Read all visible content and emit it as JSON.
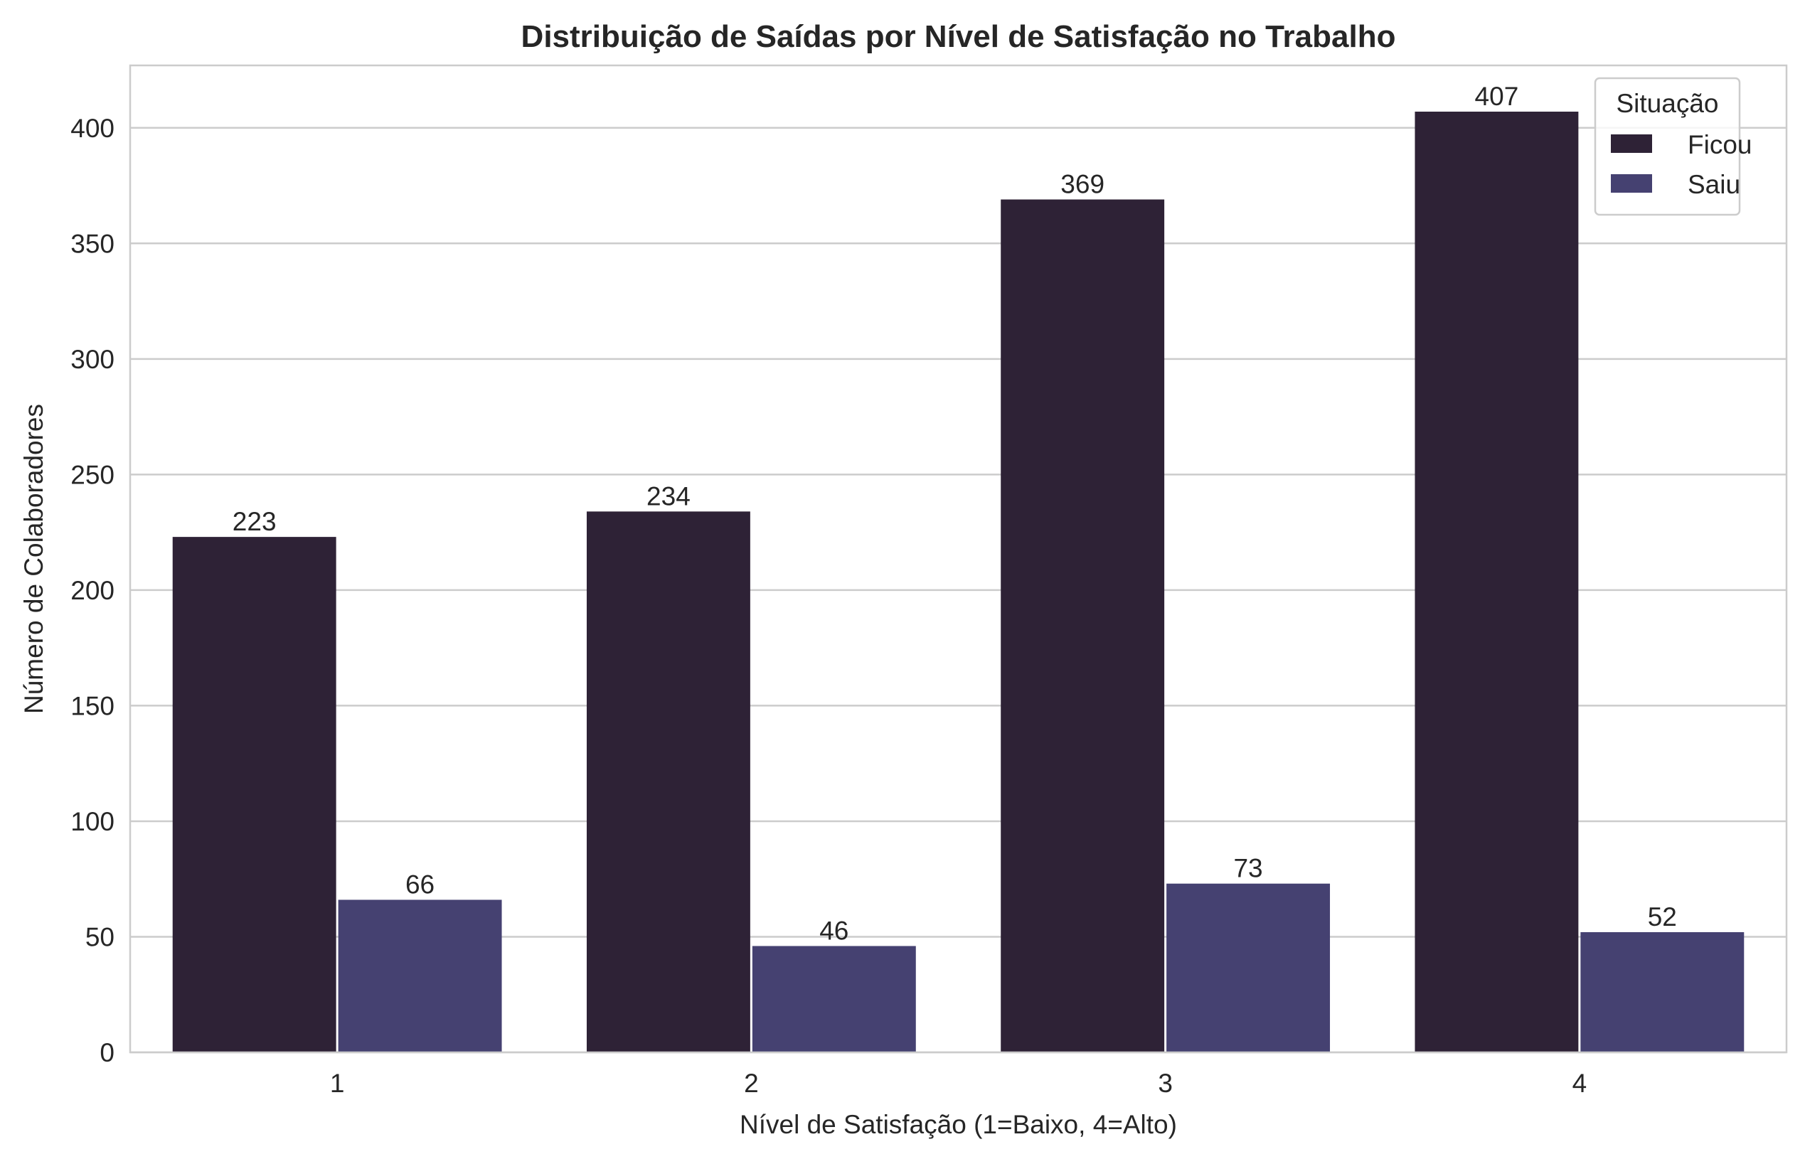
{
  "chart_data": {
    "type": "bar",
    "title": "Distribuição de Saídas por Nível de Satisfação no Trabalho",
    "xlabel": "Nível de Satisfação (1=Baixo, 4=Alto)",
    "ylabel": "Número de Colaboradores",
    "categories": [
      "1",
      "2",
      "3",
      "4"
    ],
    "series": [
      {
        "name": "Ficou",
        "color": "#2e2236",
        "values": [
          223,
          234,
          369,
          407
        ]
      },
      {
        "name": "Saiu",
        "color": "#454171",
        "values": [
          66,
          46,
          73,
          52
        ]
      }
    ],
    "yticks": [
      0,
      50,
      100,
      150,
      200,
      250,
      300,
      350,
      400
    ],
    "ylim": [
      0,
      427
    ],
    "grid": true,
    "legend": {
      "title": "Situação",
      "placement": "top-right"
    }
  }
}
